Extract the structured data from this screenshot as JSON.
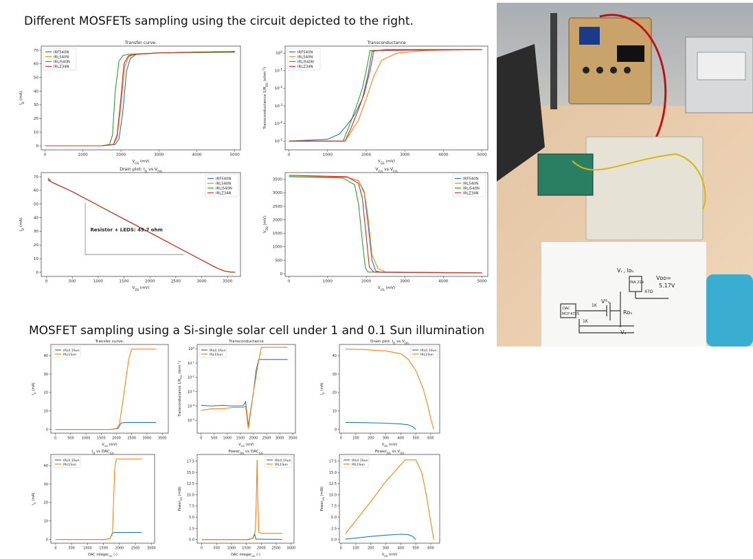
{
  "headings": {
    "top": "Different MOSFETs sampling using the circuit depicted to the right.",
    "bottom": "MOSFET sampling using a Si-single solar cell under 1 and 0.1 Sun illumination"
  },
  "photo": {
    "labels": {
      "vi_ids": "Vᵢ , Iᴅₛ",
      "vdd": "Vᴅᴅ=",
      "vdd_value": "5.17V",
      "dac": "DAC",
      "dac_model": "MCP 4725",
      "vgs": "Vᴳₛ",
      "rds": "Rᴅₛ",
      "r1k_a": "1K",
      "r1k_b": "1K",
      "r47": "47Ω",
      "ina": "INA 219",
      "vs": "Vₛ"
    }
  },
  "colors": {
    "blue": "#1f77b4",
    "orange": "#ff7f0e",
    "green": "#2ca02c",
    "red": "#d62728",
    "ann": "#7f7f7f"
  },
  "chart_data": [
    {
      "id": "c1",
      "type": "line",
      "title": "Transfer curve:",
      "xlabel": "V_GS (mV)",
      "ylabel": "I_D (mA)",
      "xlim": [
        -100,
        5150
      ],
      "ylim": [
        -3,
        73
      ],
      "yscale": "linear",
      "xticks": [
        0,
        1000,
        2000,
        3000,
        4000,
        5000
      ],
      "yticks": [
        0,
        10,
        20,
        30,
        40,
        50,
        60,
        70
      ],
      "legend": "top-left",
      "series": [
        {
          "name": "IRF540N",
          "color": "blue",
          "x": [
            0,
            1500,
            1850,
            1950,
            2050,
            2150,
            2250,
            2400,
            3000,
            5000
          ],
          "y": [
            0,
            0,
            1,
            5,
            25,
            55,
            64,
            67,
            68,
            69
          ]
        },
        {
          "name": "IRL540N",
          "color": "orange",
          "x": [
            0,
            1500,
            1800,
            1900,
            2000,
            2100,
            2200,
            2350,
            3000,
            5000
          ],
          "y": [
            0,
            0,
            1,
            6,
            30,
            58,
            65,
            67,
            68,
            69
          ]
        },
        {
          "name": "IRLI540N",
          "color": "green",
          "x": [
            0,
            1500,
            1700,
            1780,
            1850,
            1950,
            2050,
            2200,
            3000,
            5000
          ],
          "y": [
            0,
            0,
            1,
            8,
            40,
            62,
            66,
            67,
            68,
            68.5
          ]
        },
        {
          "name": "IRLZ34N",
          "color": "red",
          "x": [
            0,
            1500,
            1800,
            1900,
            2000,
            2080,
            2200,
            2400,
            3000,
            5000
          ],
          "y": [
            0,
            0,
            1,
            8,
            35,
            60,
            66,
            67,
            68,
            69
          ]
        }
      ]
    },
    {
      "id": "c2",
      "type": "line",
      "title": "Transconductance",
      "xlabel": "V_GS (mV)",
      "ylabel": "Transconductance 1/R_DS (ohm^-1)",
      "xlim": [
        -100,
        5150
      ],
      "ylim": [
        -5.5,
        0.4
      ],
      "yscale": "log",
      "xticks": [
        0,
        1000,
        2000,
        3000,
        4000,
        5000
      ],
      "yticks": [
        0,
        -1,
        -2,
        -3,
        -4,
        -5
      ],
      "ytick_labels": [
        "10^0",
        "10^-1",
        "10^-2",
        "10^-3",
        "10^-4",
        "10^-5"
      ],
      "legend": "top-left",
      "series": [
        {
          "name": "IRF540N",
          "color": "blue",
          "x": [
            0,
            1000,
            1300,
            1500,
            1700,
            1900,
            2050,
            2150,
            2500,
            5000
          ],
          "y": [
            -5,
            -4.9,
            -4.6,
            -4.1,
            -3.5,
            -2.6,
            -1.2,
            0.1,
            0.2,
            0.2
          ]
        },
        {
          "name": "IRL540N",
          "color": "orange",
          "x": [
            0,
            1000,
            1450,
            1600,
            1800,
            2000,
            2200,
            2400,
            2800,
            3500,
            5000
          ],
          "y": [
            -5,
            -5,
            -5,
            -4.5,
            -3.8,
            -2.6,
            -1.3,
            -0.4,
            0,
            0.15,
            0.2
          ]
        },
        {
          "name": "IRLI540N",
          "color": "green",
          "x": [
            0,
            1000,
            1400,
            1550,
            1750,
            1900,
            2000,
            2100,
            5000
          ],
          "y": [
            -5,
            -5,
            -5,
            -4.2,
            -3,
            -2,
            -1,
            0.15,
            0.2
          ]
        },
        {
          "name": "IRLZ34N",
          "color": "red",
          "x": [
            0,
            1000,
            1450,
            1600,
            1800,
            1950,
            2100,
            2200,
            5000
          ],
          "y": [
            -5,
            -5,
            -5,
            -4.3,
            -3.2,
            -2.3,
            -1,
            0.15,
            0.2
          ]
        }
      ]
    },
    {
      "id": "c3",
      "type": "line",
      "title": "Drain plot: I_D vs V_DS",
      "xlabel": "V_DS (mV)",
      "ylabel": "I_D (mA)",
      "xlim": [
        -100,
        3750
      ],
      "ylim": [
        -3,
        73
      ],
      "yscale": "linear",
      "xticks": [
        0,
        500,
        1000,
        1500,
        2000,
        2500,
        3000,
        3500
      ],
      "yticks": [
        0,
        10,
        20,
        30,
        40,
        50,
        60,
        70
      ],
      "legend": "top-right",
      "annotation": {
        "text": "Resistor + LEDS: 49.7 ohm",
        "x": 850,
        "y": 30
      },
      "triangle": {
        "x": [
          750,
          750,
          2650
        ],
        "y": [
          51,
          13,
          13
        ]
      },
      "series": [
        {
          "name": "IRF540N",
          "color": "blue",
          "x": [
            30,
            100,
            500,
            1000,
            1500,
            2000,
            2500,
            3000,
            3300,
            3450,
            3550,
            3650
          ],
          "y": [
            68,
            66,
            59,
            49,
            39,
            29,
            19,
            9,
            3,
            0.8,
            0.2,
            0
          ]
        },
        {
          "name": "IRL540N",
          "color": "orange",
          "x": [
            30,
            100,
            500,
            1000,
            1500,
            2000,
            2500,
            3000,
            3300,
            3450,
            3550,
            3650
          ],
          "y": [
            68,
            66,
            59,
            49,
            39,
            29,
            19,
            9,
            3,
            0.8,
            0.2,
            0
          ]
        },
        {
          "name": "IRLI540N",
          "color": "green",
          "x": [
            30,
            100,
            500,
            1000,
            1500,
            2000,
            2500,
            3000,
            3300,
            3450,
            3550,
            3650
          ],
          "y": [
            67.5,
            66,
            59,
            49,
            39,
            29,
            19,
            9,
            3,
            0.8,
            0.2,
            0
          ]
        },
        {
          "name": "IRLZ34N",
          "color": "red",
          "x": [
            30,
            100,
            500,
            1000,
            1500,
            2000,
            2500,
            3000,
            3300,
            3450,
            3550,
            3650
          ],
          "y": [
            69,
            66,
            59,
            49,
            39,
            29,
            19,
            9,
            3,
            0.8,
            0.2,
            0
          ]
        }
      ]
    },
    {
      "id": "c4",
      "type": "line",
      "title": "V_GS vs V_DS",
      "xlabel": "V_GS (mV)",
      "ylabel": "V_DS (mV)",
      "xlim": [
        -100,
        5150
      ],
      "ylim": [
        -100,
        3750
      ],
      "yscale": "linear",
      "xticks": [
        0,
        1000,
        2000,
        3000,
        4000,
        5000
      ],
      "yticks": [
        0,
        500,
        1000,
        1500,
        2000,
        2500,
        3000,
        3500
      ],
      "legend": "top-right",
      "series": [
        {
          "name": "IRF540N",
          "color": "blue",
          "x": [
            0,
            1500,
            1800,
            1950,
            2050,
            2150,
            2250,
            2400,
            5000
          ],
          "y": [
            3600,
            3580,
            3450,
            3000,
            1800,
            500,
            100,
            50,
            30
          ]
        },
        {
          "name": "IRL540N",
          "color": "orange",
          "x": [
            0,
            1500,
            1800,
            1950,
            2050,
            2150,
            2300,
            2500,
            5000
          ],
          "y": [
            3600,
            3580,
            3450,
            3050,
            2100,
            700,
            200,
            60,
            30
          ]
        },
        {
          "name": "IRLI540N",
          "color": "green",
          "x": [
            0,
            1400,
            1700,
            1800,
            1900,
            1980,
            2050,
            5000
          ],
          "y": [
            3600,
            3550,
            3300,
            2600,
            1200,
            200,
            60,
            30
          ]
        },
        {
          "name": "IRLZ34N",
          "color": "red",
          "x": [
            0,
            1500,
            1800,
            1900,
            2000,
            2080,
            2200,
            5000
          ],
          "y": [
            3650,
            3600,
            3350,
            2800,
            1400,
            250,
            60,
            30
          ]
        }
      ]
    },
    {
      "id": "s1",
      "type": "line",
      "title": "Transfer curve:",
      "xlabel": "V_GS (mV)",
      "ylabel": "I_D (mA)",
      "xlim": [
        -150,
        3700
      ],
      "ylim": [
        -2,
        46
      ],
      "yscale": "linear",
      "xticks": [
        0,
        500,
        1000,
        1500,
        2000,
        2500,
        3000,
        3500
      ],
      "yticks": [
        0,
        10,
        20,
        30,
        40
      ],
      "legend": "top-left",
      "series": [
        {
          "name": "IRL0.1Sun",
          "color": "blue",
          "x": [
            0,
            1800,
            2050,
            2150,
            2300,
            3300
          ],
          "y": [
            0,
            0,
            0.5,
            3.5,
            3.8,
            3.8
          ]
        },
        {
          "name": "IRL1Sun",
          "color": "orange",
          "x": [
            0,
            1800,
            2000,
            2100,
            2250,
            2400,
            2500,
            3300
          ],
          "y": [
            0,
            0,
            0.5,
            3,
            20,
            38,
            43.5,
            43.5
          ]
        }
      ]
    },
    {
      "id": "s2",
      "type": "line",
      "title": "Transconductance",
      "xlabel": "V_GS (mV)",
      "ylabel": "Transconductance 1/R_DS (ohm^-1)",
      "xlim": [
        -150,
        3600
      ],
      "ylim": [
        -5.9,
        0.3
      ],
      "yscale": "log",
      "xticks": [
        0,
        500,
        1000,
        1500,
        2000,
        2500,
        3000,
        3500
      ],
      "yticks": [
        0,
        -1,
        -2,
        -3,
        -4,
        -5
      ],
      "ytick_labels": [
        "10^0",
        "10^-1",
        "10^-2",
        "10^-3",
        "10^-4",
        "10^-5"
      ],
      "legend": "top-left",
      "series": [
        {
          "name": "IRL0.1Sun",
          "color": "blue",
          "x": [
            0,
            400,
            800,
            1200,
            1600,
            1700,
            1800,
            2000,
            2100,
            2200,
            3300
          ],
          "y": [
            -3.95,
            -4.0,
            -3.95,
            -4.0,
            -4.0,
            -3.7,
            -5.4,
            -3.0,
            -1.5,
            -0.75,
            -0.75
          ]
        },
        {
          "name": "IRL1Sun",
          "color": "orange",
          "x": [
            0,
            400,
            800,
            1200,
            1600,
            1700,
            1800,
            2000,
            2200,
            2300,
            3300
          ],
          "y": [
            -4.3,
            -4.2,
            -4.2,
            -4.1,
            -4.1,
            -4.0,
            -5.6,
            -3.0,
            -0.8,
            0.1,
            0.1
          ]
        }
      ]
    },
    {
      "id": "s3",
      "type": "line",
      "title": "Drain plot: I_D vs V_DS",
      "xlabel": "V_DS (mV)",
      "ylabel": "I_D (mA)",
      "xlim": [
        -10,
        660
      ],
      "ylim": [
        -2,
        46
      ],
      "yscale": "linear",
      "xticks": [
        0,
        100,
        200,
        300,
        400,
        500,
        600
      ],
      "yticks": [
        0,
        10,
        20,
        30,
        40
      ],
      "legend": "top-right",
      "series": [
        {
          "name": "IRL0.1Sun",
          "color": "blue",
          "x": [
            30,
            150,
            300,
            400,
            450,
            480,
            500
          ],
          "y": [
            3.8,
            3.7,
            3.4,
            3.0,
            2.5,
            1.5,
            0
          ]
        },
        {
          "name": "IRL1Sun",
          "color": "orange",
          "x": [
            30,
            150,
            300,
            400,
            450,
            500,
            550,
            580,
            600,
            620
          ],
          "y": [
            43.5,
            43.3,
            42.5,
            41,
            38,
            32,
            22,
            13,
            6,
            0
          ]
        }
      ]
    },
    {
      "id": "s4",
      "type": "line",
      "title": "I_D vs DAC_GS",
      "xlabel": "DAC integer_GS (-)",
      "ylabel": "I_D (mA)",
      "xlim": [
        -150,
        3100
      ],
      "ylim": [
        -2,
        46
      ],
      "yscale": "linear",
      "xticks": [
        0,
        500,
        1000,
        1500,
        2000,
        2500,
        3000
      ],
      "yticks": [
        0,
        10,
        20,
        30,
        40
      ],
      "legend": "top-left",
      "series": [
        {
          "name": "IRL0.1Sun",
          "color": "blue",
          "x": [
            0,
            1550,
            1700,
            1780,
            1850,
            2700
          ],
          "y": [
            0,
            0,
            0.5,
            3.5,
            3.8,
            3.8
          ]
        },
        {
          "name": "IRL1Sun",
          "color": "orange",
          "x": [
            0,
            1550,
            1700,
            1780,
            1850,
            1900,
            2700
          ],
          "y": [
            0,
            0,
            0.5,
            3,
            38,
            43.5,
            43.5
          ]
        }
      ]
    },
    {
      "id": "s5",
      "type": "line",
      "title": "Power_DS vs DAC_GS",
      "xlabel": "DAC integer_GS (-)",
      "ylabel": "Power_DS (mW)",
      "xlim": [
        -150,
        3100
      ],
      "ylim": [
        -0.8,
        19
      ],
      "yscale": "linear",
      "xticks": [
        0,
        500,
        1000,
        1500,
        2000,
        2500,
        3000
      ],
      "yticks": [
        0,
        2.5,
        5,
        7.5,
        10,
        12.5,
        15,
        17.5
      ],
      "ytick_labels": [
        "0.0",
        "2.5",
        "5.0",
        "7.5",
        "10.0",
        "12.5",
        "15.0",
        "17.5"
      ],
      "legend": "top-right",
      "series": [
        {
          "name": "IRL0.1Sun",
          "color": "blue",
          "x": [
            0,
            1500,
            1680,
            1740,
            1780,
            1820,
            2700
          ],
          "y": [
            0,
            0,
            0.2,
            0.6,
            1.2,
            0.1,
            0.05
          ]
        },
        {
          "name": "IRL1Sun",
          "color": "orange",
          "x": [
            0,
            1600,
            1720,
            1800,
            1830,
            1860,
            1880,
            1920,
            2000,
            2700
          ],
          "y": [
            0,
            0,
            0.3,
            2,
            8,
            17.8,
            10,
            1.6,
            1.4,
            1.4
          ]
        }
      ]
    },
    {
      "id": "s6",
      "type": "line",
      "title": "Power_DS vs V_DS",
      "xlabel": "V_DS (mV)",
      "ylabel": "Power_DS (mW)",
      "xlim": [
        -10,
        660
      ],
      "ylim": [
        -0.8,
        19
      ],
      "yscale": "linear",
      "xticks": [
        0,
        100,
        200,
        300,
        400,
        500,
        600
      ],
      "yticks": [
        0,
        2.5,
        5,
        7.5,
        10,
        12.5,
        15,
        17.5
      ],
      "ytick_labels": [
        "0.0",
        "2.5",
        "5.0",
        "7.5",
        "10.0",
        "12.5",
        "15.0",
        "17.5"
      ],
      "legend": "top-left",
      "series": [
        {
          "name": "IRL0.1Sun",
          "color": "blue",
          "x": [
            30,
            200,
            300,
            400,
            450,
            480,
            500
          ],
          "y": [
            0.1,
            0.7,
            1.0,
            1.2,
            1.1,
            0.7,
            0
          ]
        },
        {
          "name": "IRL1Sun",
          "color": "orange",
          "x": [
            30,
            200,
            300,
            430,
            500,
            540,
            570,
            600,
            620
          ],
          "y": [
            1.3,
            8.5,
            13,
            17.8,
            17.8,
            15,
            10,
            4,
            0
          ]
        }
      ]
    }
  ]
}
